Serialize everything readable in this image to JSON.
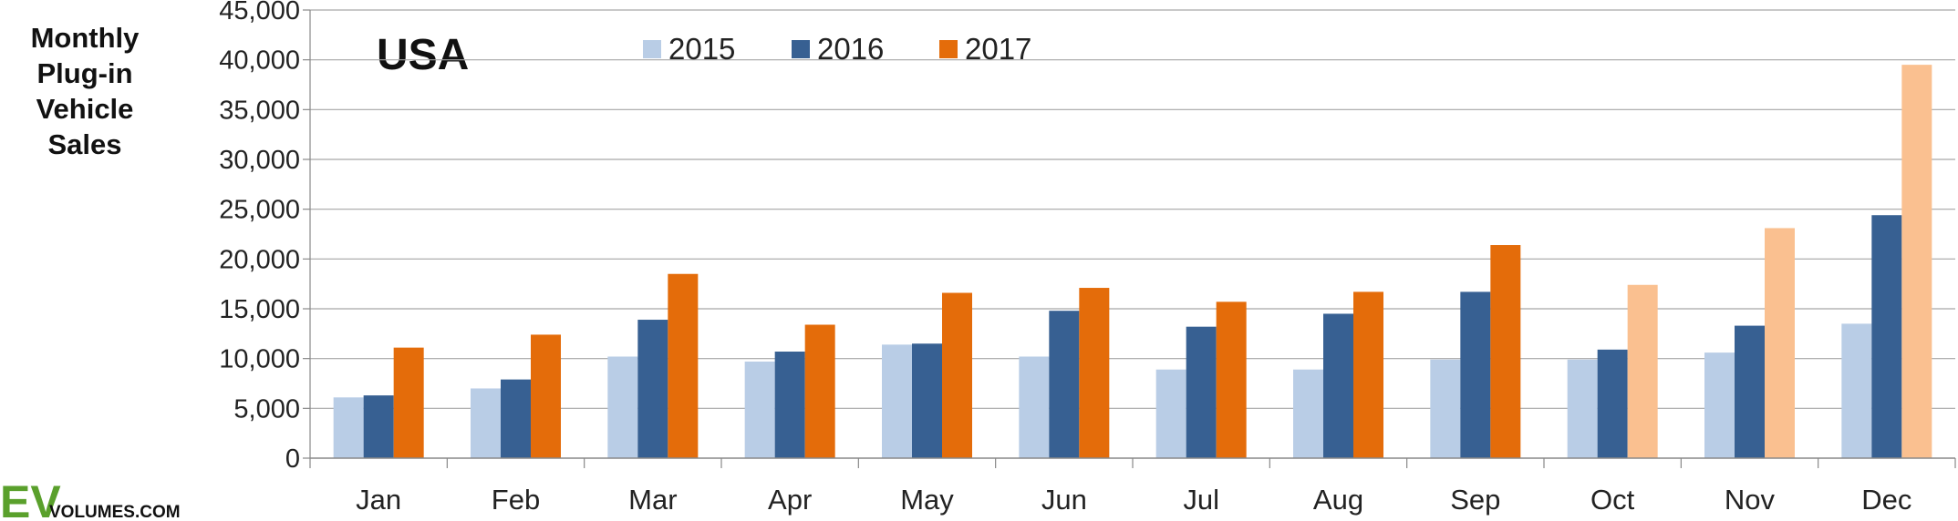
{
  "chart_data": {
    "type": "bar",
    "title_lines": [
      "Monthly",
      "Plug-in",
      "Vehicle",
      "Sales"
    ],
    "country_label": "USA",
    "categories": [
      "Jan",
      "Feb",
      "Mar",
      "Apr",
      "May",
      "Jun",
      "Jul",
      "Aug",
      "Sep",
      "Oct",
      "Nov",
      "Dec"
    ],
    "series": [
      {
        "name": "2015",
        "color": "#b9cde6",
        "values": [
          6100,
          7000,
          10200,
          9700,
          11400,
          10200,
          8900,
          8900,
          9900,
          9900,
          10600,
          13500
        ]
      },
      {
        "name": "2016",
        "color": "#376092",
        "values": [
          6300,
          7900,
          13900,
          10700,
          11500,
          14800,
          13200,
          14500,
          16700,
          10900,
          13300,
          24400
        ]
      },
      {
        "name": "2017",
        "color": "#e46c0a",
        "forecast_color": "#fac090",
        "values": [
          11100,
          12400,
          18500,
          13400,
          16600,
          17100,
          15700,
          16700,
          21400,
          17400,
          23100,
          39500
        ],
        "forecast_from_index": 9
      }
    ],
    "ylim": [
      0,
      45000
    ],
    "yticks": [
      "0",
      "5,000",
      "10,000",
      "15,000",
      "20,000",
      "25,000",
      "30,000",
      "35,000",
      "40,000",
      "45,000"
    ],
    "ytick_values": [
      0,
      5000,
      10000,
      15000,
      20000,
      25000,
      30000,
      35000,
      40000,
      45000
    ],
    "grid": true,
    "legend_position": "top-center"
  },
  "logo": {
    "ev": "EV",
    "rest": "VOLUMES.COM"
  }
}
